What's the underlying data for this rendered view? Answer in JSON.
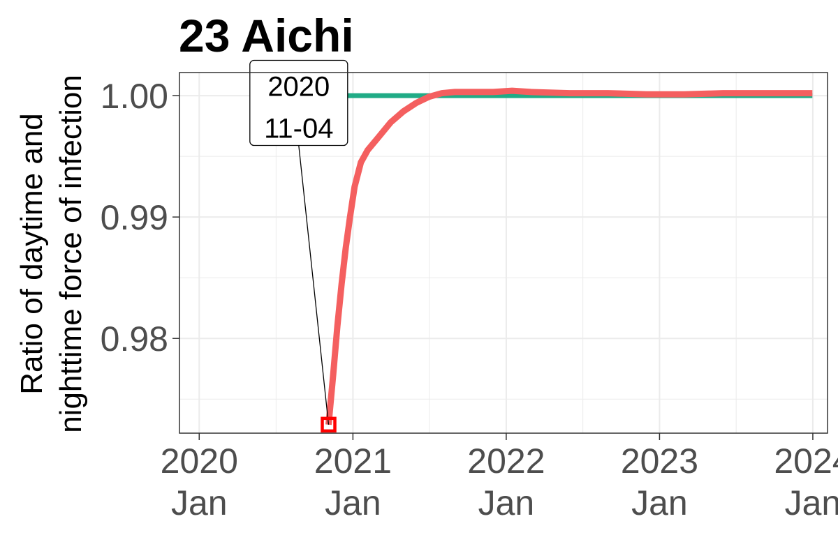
{
  "chart_data": {
    "type": "line",
    "title": "23 Aichi",
    "ylabel_lines": [
      "Ratio of daytime and",
      "nighttime force of infection"
    ],
    "xlabel": "",
    "xlim": [
      "2019-11-15",
      "2024-02-05"
    ],
    "ylim": [
      0.9722,
      1.0019
    ],
    "x_ticks": [
      {
        "date": "2020-01-01",
        "line1": "2020",
        "line2": "Jan"
      },
      {
        "date": "2021-01-01",
        "line1": "2021",
        "line2": "Jan"
      },
      {
        "date": "2022-01-01",
        "line1": "2022",
        "line2": "Jan"
      },
      {
        "date": "2023-01-01",
        "line1": "2023",
        "line2": "Jan"
      },
      {
        "date": "2024-01-01",
        "line1": "2024",
        "line2": "Jan"
      }
    ],
    "y_ticks": [
      {
        "value": 0.98,
        "label": "0.98"
      },
      {
        "value": 0.99,
        "label": "0.99"
      },
      {
        "value": 1.0,
        "label": "1.00"
      }
    ],
    "grid": true,
    "legend": "none",
    "series": [
      {
        "color": "#20ab86",
        "x": [
          "2020-11-04",
          "2023-12-31"
        ],
        "y": [
          1.0,
          1.0
        ]
      },
      {
        "color": "#f45f5f",
        "x": [
          "2020-11-04",
          "2020-11-15",
          "2020-11-25",
          "2020-12-05",
          "2020-12-15",
          "2020-12-25",
          "2021-01-05",
          "2021-01-20",
          "2021-02-05",
          "2021-03-01",
          "2021-04-01",
          "2021-05-01",
          "2021-06-01",
          "2021-07-01",
          "2021-08-01",
          "2021-09-01",
          "2021-10-01",
          "2021-11-01",
          "2021-12-01",
          "2022-01-15",
          "2022-03-01",
          "2022-06-01",
          "2022-09-01",
          "2022-12-01",
          "2023-03-01",
          "2023-06-01",
          "2023-09-01",
          "2023-12-31"
        ],
        "y": [
          0.9729,
          0.977,
          0.981,
          0.9845,
          0.9875,
          0.99,
          0.9925,
          0.9945,
          0.9955,
          0.9965,
          0.9978,
          0.9987,
          0.9994,
          0.9999,
          1.0002,
          1.0003,
          1.0003,
          1.0003,
          1.0003,
          1.0004,
          1.0003,
          1.0002,
          1.0002,
          1.0001,
          1.0001,
          1.0002,
          1.0002,
          1.0002
        ]
      }
    ],
    "highlight_point": {
      "date": "2020-11-04",
      "value": 0.9729,
      "color": "#ff0000"
    },
    "annotation": {
      "lines": [
        "2020",
        "11-04"
      ],
      "anchor_date": "2020-11-04",
      "anchor_value": 0.9729,
      "label_date": "2020-08-25",
      "label_value": 0.9994
    }
  }
}
